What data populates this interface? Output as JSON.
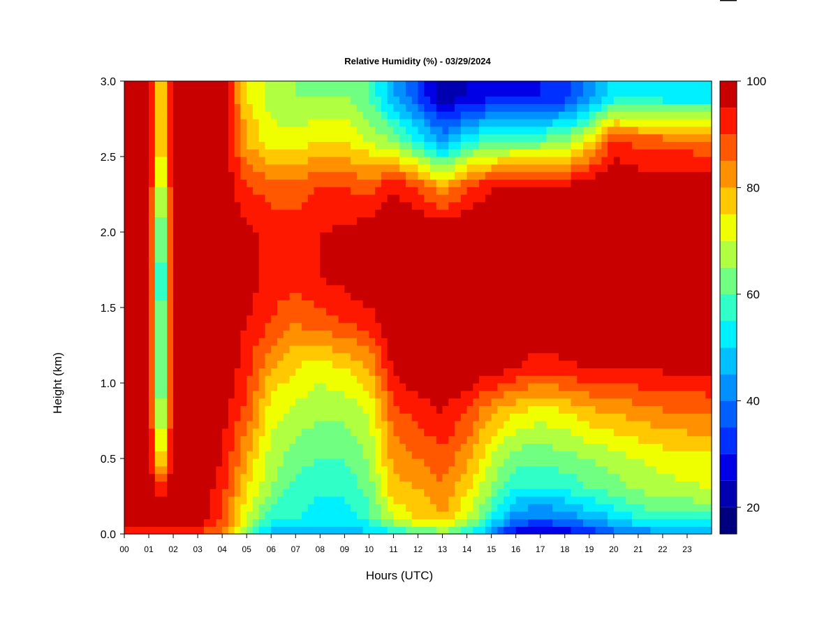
{
  "chart_data": {
    "type": "heatmap",
    "title": "Relative Humidity (%) - 03/29/2024",
    "xlabel": "Hours (UTC)",
    "ylabel": "Height (km)",
    "xlim": [
      0,
      24
    ],
    "ylim": [
      0,
      3
    ],
    "x_ticks": [
      "00",
      "01",
      "02",
      "03",
      "04",
      "05",
      "06",
      "07",
      "08",
      "09",
      "10",
      "11",
      "12",
      "13",
      "14",
      "15",
      "16",
      "17",
      "18",
      "19",
      "20",
      "21",
      "22",
      "23"
    ],
    "y_ticks": [
      "0.0",
      "0.5",
      "1.0",
      "1.5",
      "2.0",
      "2.5",
      "3.0"
    ],
    "colorbar": {
      "range": [
        15,
        100
      ],
      "tick_labels": [
        "20",
        "40",
        "60",
        "80",
        "100"
      ],
      "tick_values": [
        20,
        40,
        60,
        80,
        100
      ],
      "levels": [
        15,
        20,
        25,
        30,
        35,
        40,
        45,
        50,
        55,
        60,
        65,
        70,
        75,
        80,
        85,
        90,
        95,
        100
      ],
      "colors": [
        "#00007F",
        "#0000B0",
        "#0000E6",
        "#0030FF",
        "#0060FF",
        "#0090FF",
        "#00C0FF",
        "#00F0FF",
        "#30FFC8",
        "#70FF80",
        "#B0FF40",
        "#F0FF00",
        "#FFC800",
        "#FF9000",
        "#FF5800",
        "#FF1800",
        "#C80000",
        "#800000"
      ]
    },
    "hours": [
      0,
      1,
      1.5,
      2,
      3,
      4,
      5,
      6,
      7,
      8,
      9,
      10,
      11,
      12,
      13,
      14,
      15,
      16,
      17,
      18,
      19,
      20,
      21,
      22,
      23.9
    ],
    "profile_heights_km": [
      0.0,
      0.1,
      0.3,
      0.5,
      0.8,
      1.1,
      1.4,
      1.7,
      2.0,
      2.3,
      2.6,
      2.9
    ],
    "rh_percent": [
      [
        92,
        100,
        100,
        100,
        100,
        100,
        100,
        100,
        100,
        100,
        100,
        100
      ],
      [
        90,
        100,
        100,
        100,
        100,
        100,
        100,
        100,
        100,
        100,
        100,
        100
      ],
      [
        88,
        100,
        92,
        68,
        55,
        50,
        48,
        45,
        50,
        60,
        70,
        70
      ],
      [
        92,
        100,
        100,
        100,
        100,
        100,
        100,
        100,
        100,
        100,
        100,
        100
      ],
      [
        90,
        98,
        100,
        100,
        100,
        100,
        100,
        100,
        100,
        100,
        100,
        100
      ],
      [
        85,
        90,
        92,
        95,
        97,
        100,
        100,
        100,
        100,
        100,
        100,
        100
      ],
      [
        60,
        70,
        75,
        80,
        88,
        92,
        95,
        98,
        97,
        90,
        80,
        75
      ],
      [
        48,
        55,
        65,
        68,
        72,
        80,
        90,
        93,
        92,
        88,
        72,
        68
      ],
      [
        47,
        55,
        58,
        62,
        68,
        75,
        85,
        92,
        92,
        88,
        72,
        65
      ],
      [
        45,
        52,
        56,
        60,
        66,
        72,
        88,
        95,
        95,
        90,
        75,
        65
      ],
      [
        46,
        52,
        56,
        60,
        66,
        75,
        90,
        97,
        96,
        90,
        75,
        65
      ],
      [
        48,
        58,
        62,
        66,
        70,
        80,
        92,
        100,
        98,
        88,
        70,
        60
      ],
      [
        52,
        70,
        78,
        82,
        88,
        96,
        100,
        100,
        100,
        95,
        65,
        45
      ],
      [
        58,
        75,
        80,
        85,
        92,
        100,
        100,
        100,
        100,
        90,
        55,
        35
      ],
      [
        62,
        80,
        84,
        88,
        95,
        100,
        100,
        100,
        100,
        80,
        45,
        20
      ],
      [
        55,
        70,
        76,
        82,
        90,
        100,
        100,
        100,
        100,
        90,
        55,
        25
      ],
      [
        42,
        55,
        65,
        70,
        80,
        98,
        100,
        100,
        100,
        95,
        60,
        28
      ],
      [
        25,
        40,
        55,
        62,
        75,
        95,
        100,
        100,
        100,
        96,
        62,
        28
      ],
      [
        22,
        38,
        55,
        62,
        72,
        92,
        100,
        100,
        100,
        96,
        62,
        30
      ],
      [
        24,
        40,
        56,
        63,
        74,
        94,
        100,
        100,
        100,
        96,
        65,
        32
      ],
      [
        30,
        45,
        60,
        65,
        78,
        95,
        100,
        100,
        100,
        100,
        75,
        42
      ],
      [
        36,
        50,
        62,
        68,
        80,
        95,
        100,
        100,
        100,
        100,
        92,
        52
      ],
      [
        40,
        55,
        66,
        70,
        82,
        96,
        100,
        100,
        100,
        100,
        88,
        55
      ],
      [
        42,
        58,
        68,
        72,
        84,
        96,
        100,
        100,
        100,
        100,
        88,
        52
      ],
      [
        42,
        58,
        70,
        74,
        86,
        96,
        100,
        100,
        100,
        100,
        86,
        52
      ]
    ]
  }
}
